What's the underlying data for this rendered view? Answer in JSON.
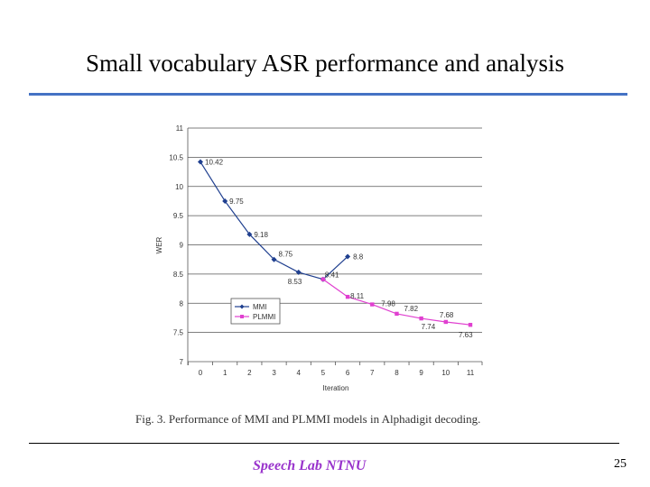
{
  "slide": {
    "title": "Small vocabulary ASR performance and analysis",
    "caption": "Fig. 3. Performance of MMI and PLMMI models in Alphadigit decoding.",
    "footer": "Speech Lab NTNU",
    "page_number": "25"
  },
  "chart_data": {
    "type": "line",
    "xlabel": "Iteration",
    "ylabel": "WER",
    "xlim": [
      0,
      11
    ],
    "ylim": [
      7,
      11
    ],
    "x_ticks": [
      0,
      1,
      2,
      3,
      4,
      5,
      6,
      7,
      8,
      9,
      10,
      11
    ],
    "y_ticks": [
      7,
      7.5,
      8,
      8.5,
      9,
      9.5,
      10,
      10.5,
      11
    ],
    "grid": "horizontal",
    "legend_position": "lower-left",
    "series": [
      {
        "name": "MMI",
        "color": "#1f3f8f",
        "marker": "diamond",
        "x": [
          0,
          1,
          2,
          3,
          4,
          5,
          6
        ],
        "values": [
          10.42,
          9.75,
          9.18,
          8.75,
          8.53,
          8.41,
          8.8
        ],
        "labels": [
          "10.42",
          "9.75",
          "9.18",
          "8.75",
          "8.53",
          "",
          "8.8"
        ]
      },
      {
        "name": "PLMMI",
        "color": "#e040d0",
        "marker": "square",
        "x": [
          5,
          6,
          7,
          8,
          9,
          10,
          11
        ],
        "values": [
          8.41,
          8.11,
          7.98,
          7.82,
          7.74,
          7.68,
          7.63
        ],
        "labels": [
          "8.41",
          "8.11",
          "7.98",
          "7.82",
          "7.74",
          "7.68",
          "7.63"
        ]
      }
    ]
  }
}
